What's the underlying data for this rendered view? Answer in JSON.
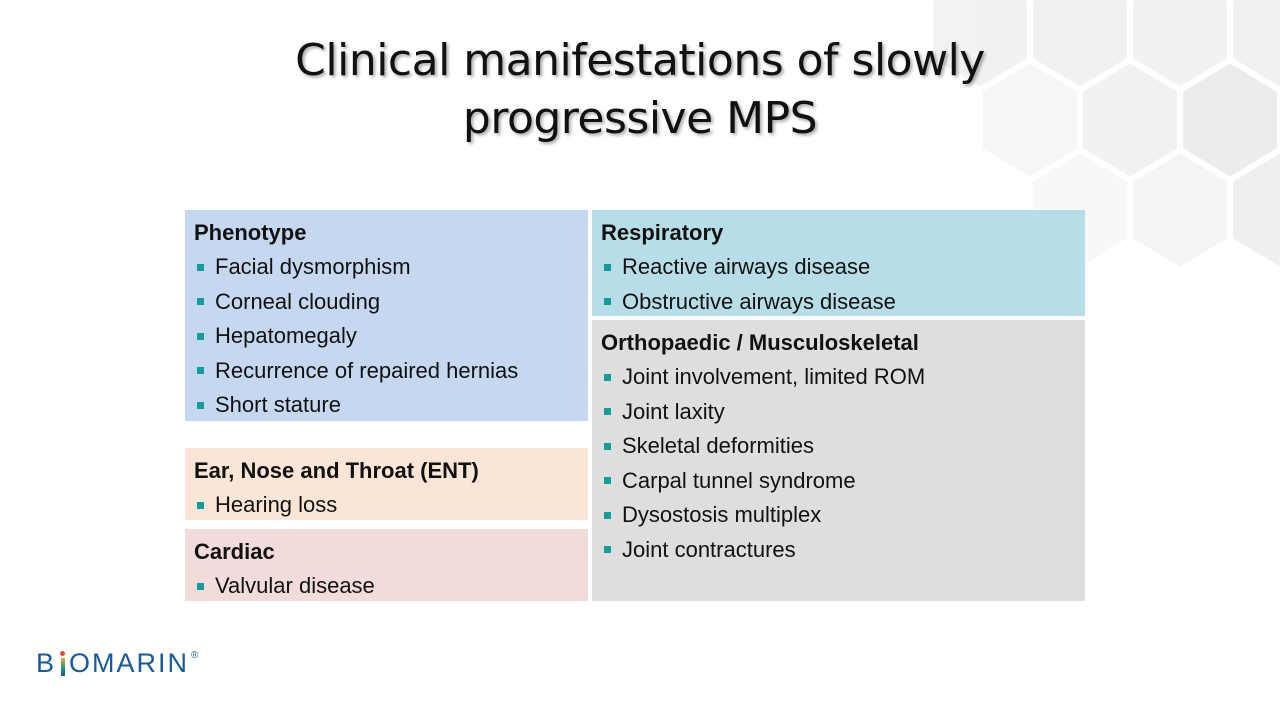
{
  "title": {
    "line1": "Clinical manifestations of  slowly",
    "line2": "progressive MPS"
  },
  "phenotype": {
    "heading": "Phenotype",
    "items": [
      "Facial dysmorphism",
      "Corneal clouding",
      "Hepatomegaly",
      "Recurrence of repaired hernias",
      "Short stature"
    ]
  },
  "ent": {
    "heading": "Ear, Nose and Throat (ENT)",
    "items": [
      "Hearing loss"
    ]
  },
  "cardiac": {
    "heading": "Cardiac",
    "items": [
      "Valvular disease"
    ]
  },
  "respiratory": {
    "heading": "Respiratory",
    "items": [
      "Reactive airways disease",
      "Obstructive airways disease"
    ]
  },
  "ortho": {
    "heading": "Orthopaedic / Musculoskeletal",
    "items": [
      "Joint involvement, limited ROM",
      "Joint laxity",
      "Skeletal deformities",
      "Carpal tunnel syndrome",
      "Dysostosis multiplex",
      "Joint contractures"
    ]
  },
  "logo": {
    "prefix": "B",
    "suffix": "OMARIN",
    "mark": "®"
  },
  "colors": {
    "phenotype_bg": "#c5d8f0",
    "ent_bg": "#fbe5d6",
    "cardiac_bg": "#f2dcdb",
    "respiratory_bg": "#b7dee8",
    "ortho_bg": "#dedede",
    "bullet": "#149c9a",
    "logo_blue": "#1a5a9a"
  }
}
